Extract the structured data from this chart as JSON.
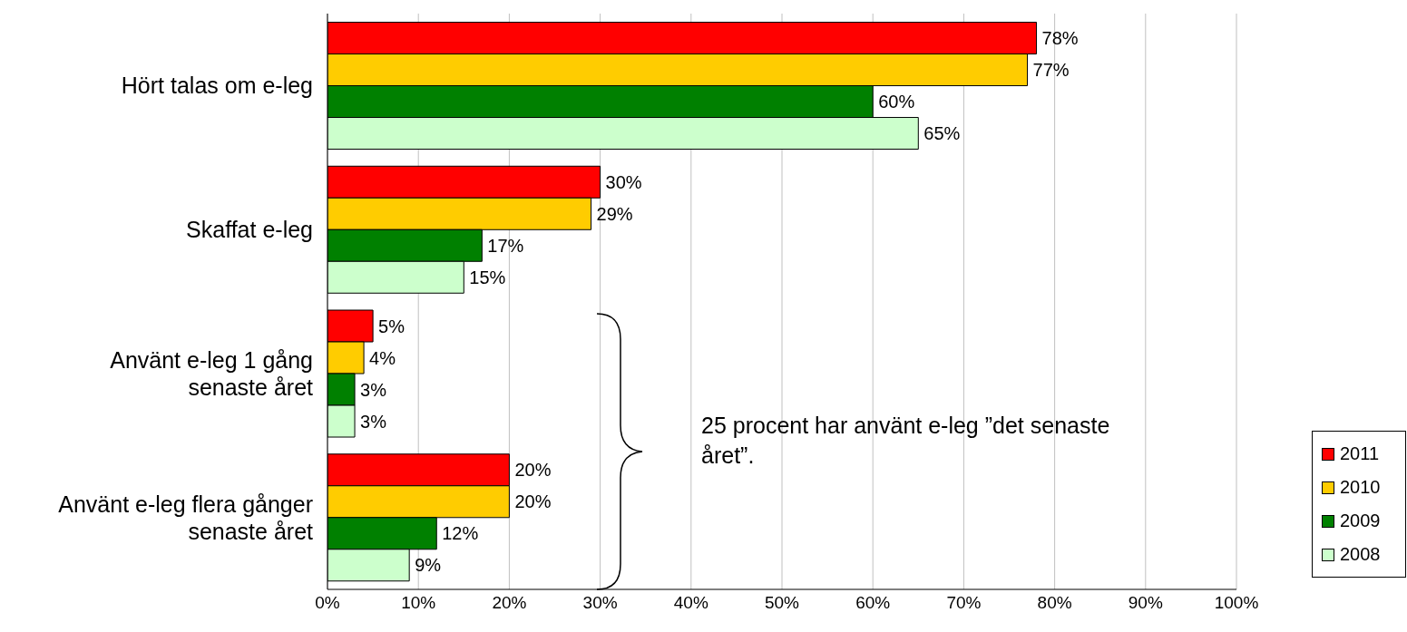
{
  "chart_data": {
    "type": "bar",
    "orientation": "horizontal",
    "categories": [
      "Hört talas om e-leg",
      "Skaffat e-leg",
      "Använt e-leg 1 gång senaste året",
      "Använt e-leg flera gånger senaste året"
    ],
    "series": [
      {
        "name": "2011",
        "color": "#ff0000",
        "values": [
          78,
          30,
          5,
          20
        ],
        "value_labels": [
          "78%",
          "30%",
          "5%",
          "20%"
        ]
      },
      {
        "name": "2010",
        "color": "#ffcc00",
        "values": [
          77,
          29,
          4,
          20
        ],
        "value_labels": [
          "77%",
          "29%",
          "4%",
          "20%"
        ]
      },
      {
        "name": "2009",
        "color": "#008000",
        "values": [
          60,
          17,
          3,
          12
        ],
        "value_labels": [
          "60%",
          "17%",
          "3%",
          "12%"
        ]
      },
      {
        "name": "2008",
        "color": "#ccffcc",
        "values": [
          65,
          15,
          3,
          9
        ],
        "value_labels": [
          "65%",
          "15%",
          "3%",
          "9%"
        ]
      }
    ],
    "xlim": [
      0,
      100
    ],
    "xticks": [
      {
        "value": 0,
        "label": "0%"
      },
      {
        "value": 10,
        "label": "10%"
      },
      {
        "value": 20,
        "label": "20%"
      },
      {
        "value": 30,
        "label": "30%"
      },
      {
        "value": 40,
        "label": "40%"
      },
      {
        "value": 50,
        "label": "50%"
      },
      {
        "value": 60,
        "label": "60%"
      },
      {
        "value": 70,
        "label": "70%"
      },
      {
        "value": 80,
        "label": "80%"
      },
      {
        "value": 90,
        "label": "90%"
      },
      {
        "value": 100,
        "label": "100%"
      }
    ],
    "grid": "x",
    "legend": "right",
    "annotations": [
      "25 procent har använt e-leg ”det senaste året”."
    ]
  }
}
